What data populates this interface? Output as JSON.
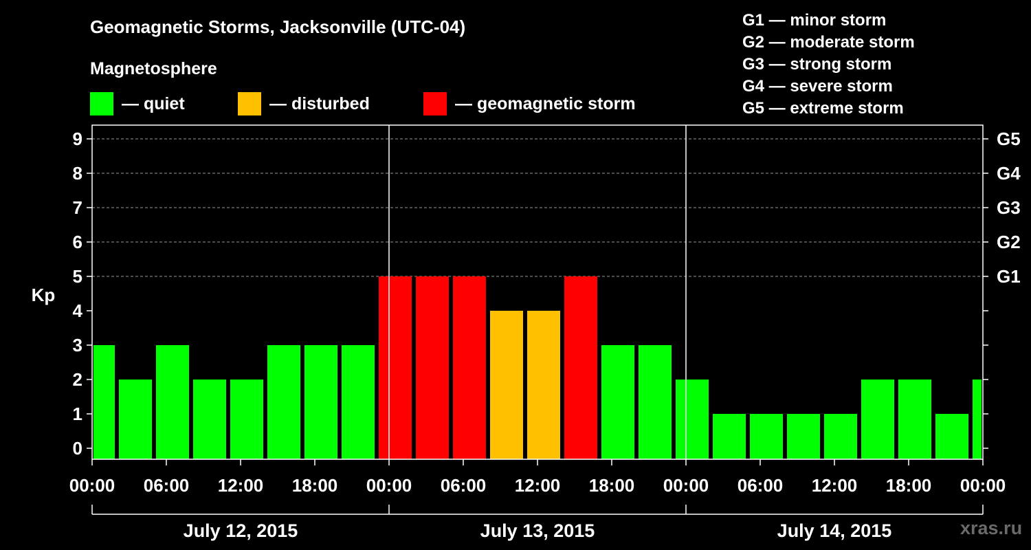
{
  "header": {
    "title": "Geomagnetic Storms, Jacksonville (UTC-04)",
    "subtitle": "Magnetosphere"
  },
  "legend": [
    {
      "label": "— quiet",
      "color": "#00ff00"
    },
    {
      "label": "— disturbed",
      "color": "#ffc000"
    },
    {
      "label": "— geomagnetic storm",
      "color": "#ff0000"
    }
  ],
  "scale_legend": [
    "G1 — minor storm",
    "G2 — moderate storm",
    "G3 — strong storm",
    "G4 — severe storm",
    "G5 — extreme storm"
  ],
  "watermark": "xras.ru",
  "chart_data": {
    "type": "bar",
    "ylabel": "Kp",
    "ylim": [
      0,
      9
    ],
    "y_ticks": [
      0,
      1,
      2,
      3,
      4,
      5,
      6,
      7,
      8,
      9
    ],
    "right_ticks": [
      {
        "kp": 5,
        "label": "G1"
      },
      {
        "kp": 6,
        "label": "G2"
      },
      {
        "kp": 7,
        "label": "G3"
      },
      {
        "kp": 8,
        "label": "G4"
      },
      {
        "kp": 9,
        "label": "G5"
      }
    ],
    "grid": "dashed horizontal at Kp 5-9",
    "interval_hours": 3,
    "x_range_hours": [
      0,
      72
    ],
    "x_tick_labels": [
      "00:00",
      "06:00",
      "12:00",
      "18:00",
      "00:00",
      "06:00",
      "12:00",
      "18:00",
      "00:00",
      "06:00",
      "12:00",
      "18:00",
      "00:00"
    ],
    "days": [
      "July 12, 2015",
      "July 13, 2015",
      "July 14, 2015"
    ],
    "bars": [
      {
        "start_hour": -1,
        "kp": 3,
        "status": "quiet"
      },
      {
        "start_hour": 2,
        "kp": 2,
        "status": "quiet"
      },
      {
        "start_hour": 5,
        "kp": 3,
        "status": "quiet"
      },
      {
        "start_hour": 8,
        "kp": 2,
        "status": "quiet"
      },
      {
        "start_hour": 11,
        "kp": 2,
        "status": "quiet"
      },
      {
        "start_hour": 14,
        "kp": 3,
        "status": "quiet"
      },
      {
        "start_hour": 17,
        "kp": 3,
        "status": "quiet"
      },
      {
        "start_hour": 20,
        "kp": 3,
        "status": "quiet"
      },
      {
        "start_hour": 23,
        "kp": 5,
        "status": "storm"
      },
      {
        "start_hour": 26,
        "kp": 5,
        "status": "storm"
      },
      {
        "start_hour": 29,
        "kp": 5,
        "status": "storm"
      },
      {
        "start_hour": 32,
        "kp": 4,
        "status": "disturbed"
      },
      {
        "start_hour": 35,
        "kp": 4,
        "status": "disturbed"
      },
      {
        "start_hour": 38,
        "kp": 5,
        "status": "storm"
      },
      {
        "start_hour": 41,
        "kp": 3,
        "status": "quiet"
      },
      {
        "start_hour": 44,
        "kp": 3,
        "status": "quiet"
      },
      {
        "start_hour": 47,
        "kp": 2,
        "status": "quiet"
      },
      {
        "start_hour": 50,
        "kp": 1,
        "status": "quiet"
      },
      {
        "start_hour": 53,
        "kp": 1,
        "status": "quiet"
      },
      {
        "start_hour": 56,
        "kp": 1,
        "status": "quiet"
      },
      {
        "start_hour": 59,
        "kp": 1,
        "status": "quiet"
      },
      {
        "start_hour": 62,
        "kp": 2,
        "status": "quiet"
      },
      {
        "start_hour": 65,
        "kp": 2,
        "status": "quiet"
      },
      {
        "start_hour": 68,
        "kp": 1,
        "status": "quiet"
      },
      {
        "start_hour": 71,
        "kp": 2,
        "status": "quiet"
      }
    ],
    "colors": {
      "quiet": "#00ff00",
      "disturbed": "#ffc000",
      "storm": "#ff0000"
    }
  }
}
